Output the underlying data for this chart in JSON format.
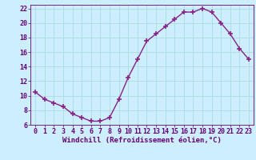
{
  "x": [
    0,
    1,
    2,
    3,
    4,
    5,
    6,
    7,
    8,
    9,
    10,
    11,
    12,
    13,
    14,
    15,
    16,
    17,
    18,
    19,
    20,
    21,
    22,
    23
  ],
  "y": [
    10.5,
    9.5,
    9.0,
    8.5,
    7.5,
    7.0,
    6.5,
    6.5,
    7.0,
    9.5,
    12.5,
    15.0,
    17.5,
    18.5,
    19.5,
    20.5,
    21.5,
    21.5,
    22.0,
    21.5,
    20.0,
    18.5,
    16.5,
    15.0
  ],
  "line_color": "#882288",
  "marker": "+",
  "markersize": 4,
  "markeredgewidth": 1.2,
  "linewidth": 1.0,
  "bg_color": "#cceeff",
  "grid_color": "#aadddd",
  "xlabel": "Windchill (Refroidissement éolien,°C)",
  "xlabel_fontsize": 6.5,
  "tick_fontsize": 6.0,
  "ylim": [
    6,
    22.5
  ],
  "xlim": [
    -0.5,
    23.5
  ],
  "yticks": [
    6,
    8,
    10,
    12,
    14,
    16,
    18,
    20,
    22
  ],
  "xticks": [
    0,
    1,
    2,
    3,
    4,
    5,
    6,
    7,
    8,
    9,
    10,
    11,
    12,
    13,
    14,
    15,
    16,
    17,
    18,
    19,
    20,
    21,
    22,
    23
  ],
  "tick_color": "#660077",
  "spine_color": "#660077"
}
